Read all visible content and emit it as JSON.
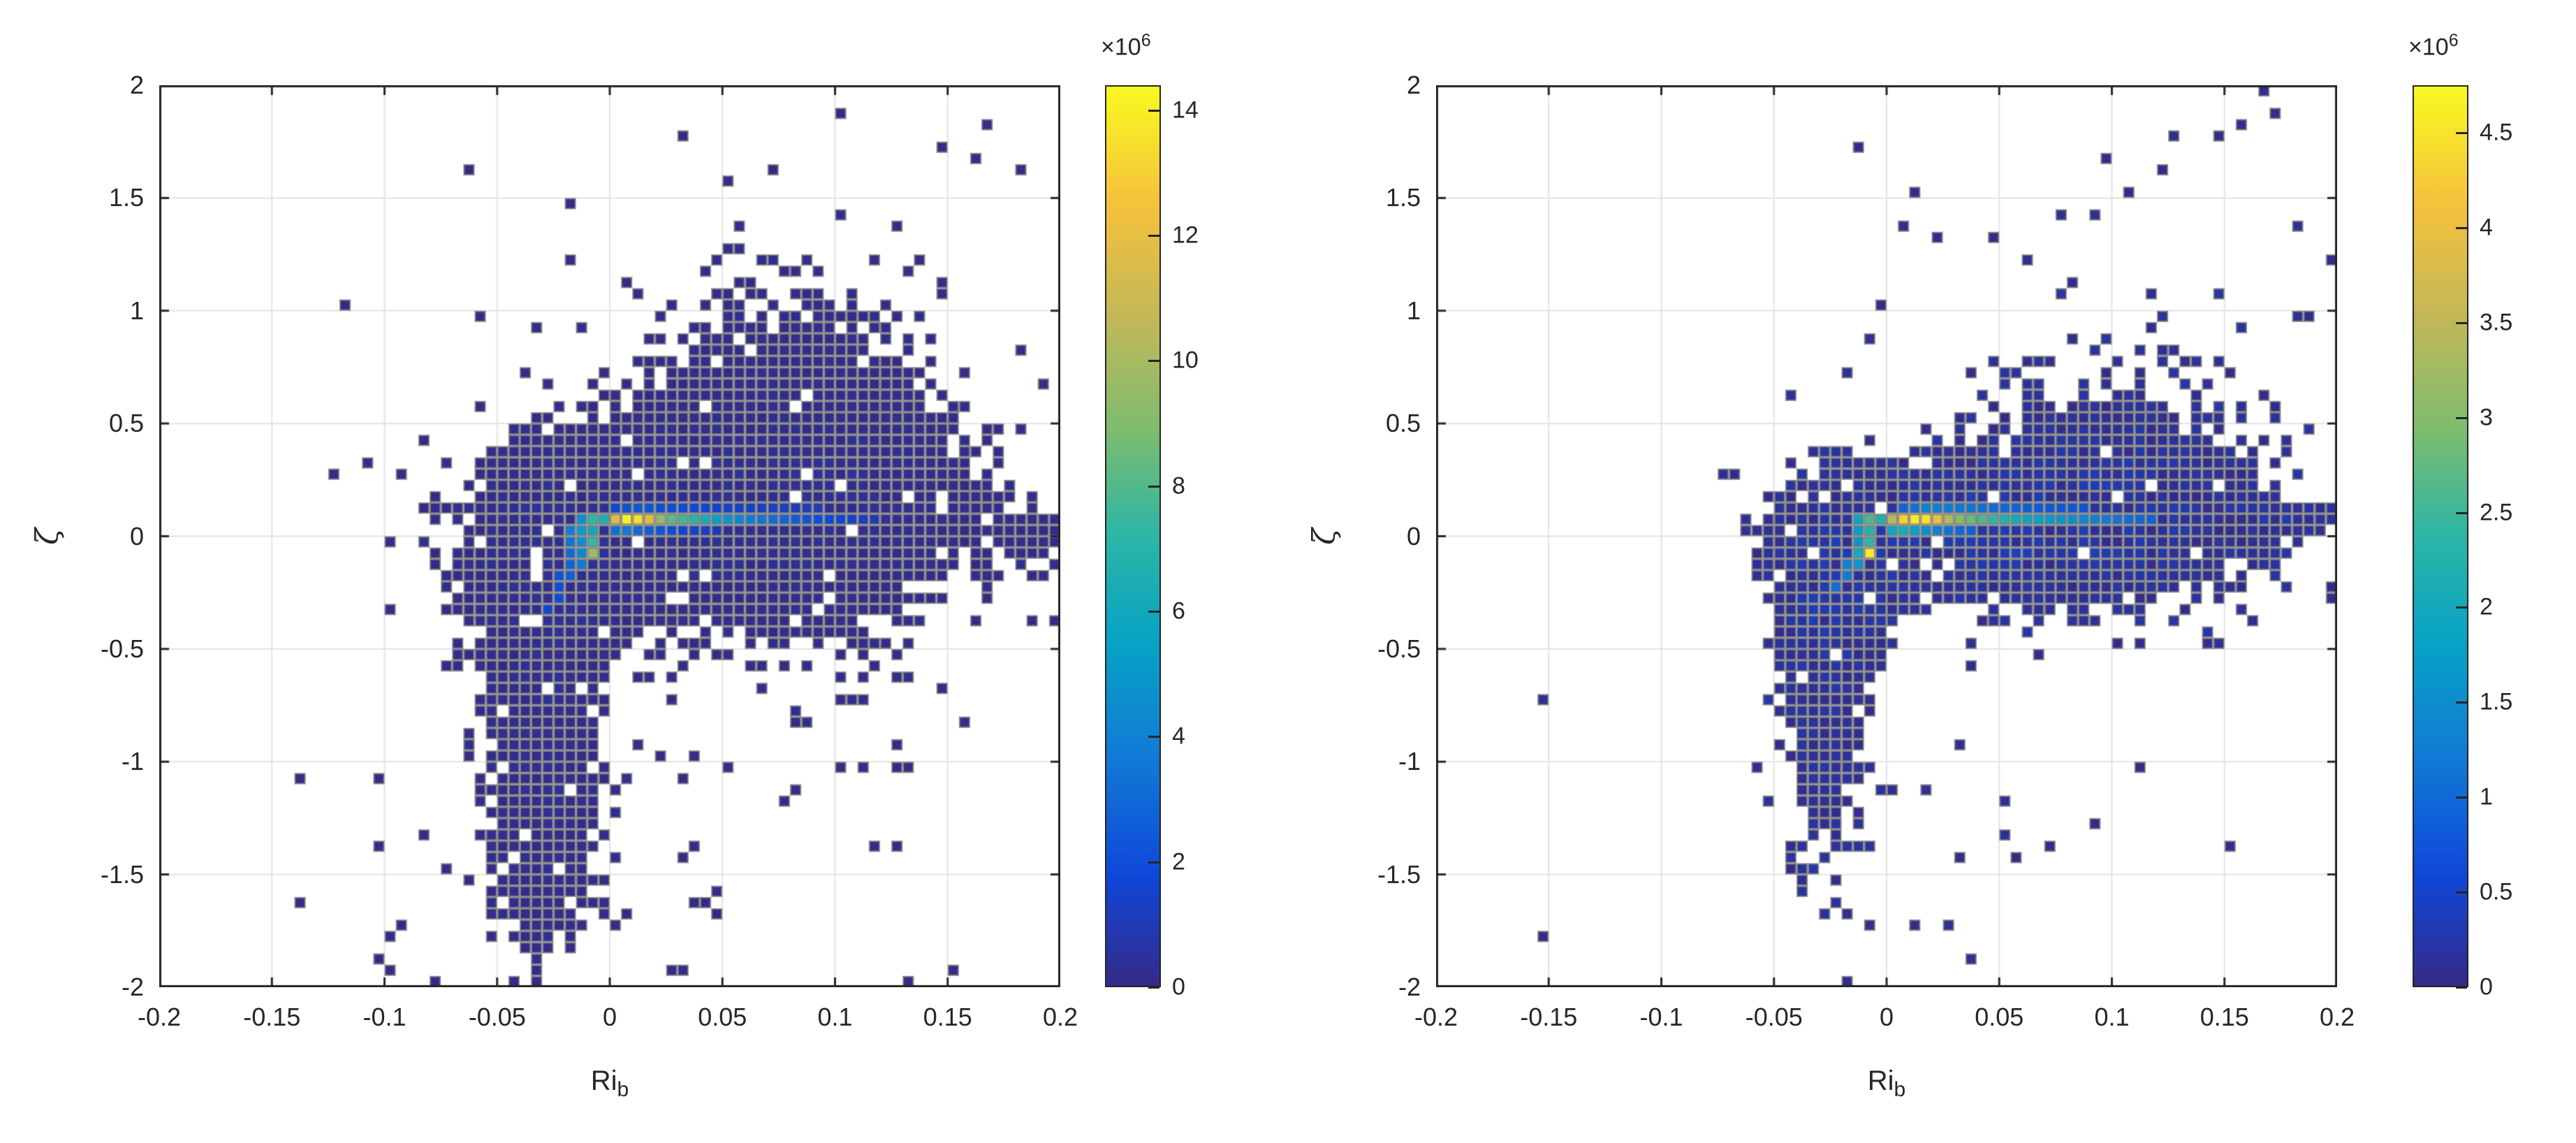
{
  "chart_data": {
    "type": "heatmap",
    "subtype": "binned-scatter-2d-histogram",
    "description": "Two side-by-side MATLAB binscatter density plots of stability parameter zeta versus bulk Richardson number Ri_b. Counts are shown with the parula colormap; both clouds are mostly low-count dark blue bins with a bright high-count streak near the origin at zeta ~ 0.05.",
    "colormap_stops": [
      [
        0.0,
        "#352a87"
      ],
      [
        0.12,
        "#1046d8"
      ],
      [
        0.25,
        "#1179d6"
      ],
      [
        0.38,
        "#07a2c6"
      ],
      [
        0.5,
        "#2cb6a6"
      ],
      [
        0.62,
        "#7fbc6e"
      ],
      [
        0.75,
        "#c6b856"
      ],
      [
        0.87,
        "#f5c13c"
      ],
      [
        1.0,
        "#f9f921"
      ]
    ],
    "grid_color": "#e3e3e3",
    "axis_color": "#262626",
    "bin_fill_low": "#352a87",
    "bin_edge_color": "rgba(128,128,128,0.9)",
    "panels": [
      {
        "id": "left",
        "xlabel_base": "Ri",
        "xlabel_sub": "b",
        "ylabel": "ζ",
        "xlim": [
          -0.2,
          0.2
        ],
        "ylim": [
          -2,
          2
        ],
        "x_ticks": [
          -0.2,
          -0.15,
          -0.1,
          -0.05,
          0,
          0.05,
          0.1,
          0.15,
          0.2
        ],
        "x_tick_labels": [
          "-0.2",
          "-0.15",
          "-0.1",
          "-0.05",
          "0",
          "0.05",
          "0.1",
          "0.15",
          "0.2"
        ],
        "y_ticks": [
          2,
          1.5,
          1,
          0.5,
          0,
          -0.5,
          -1,
          -1.5,
          -2
        ],
        "y_tick_labels": [
          "2",
          "1.5",
          "1",
          "0.5",
          "0",
          "-0.5",
          "-1",
          "-1.5",
          "-2"
        ],
        "bins": {
          "nx": 80,
          "ny": 80,
          "x_width": 0.005,
          "y_width": 0.05
        },
        "colorbar": {
          "exponent_base": "×10",
          "exponent_sup": "6",
          "cmax_1e6": 14.4,
          "ticks": [
            0,
            2,
            4,
            6,
            8,
            10,
            12,
            14
          ],
          "tick_labels": [
            "0",
            "2",
            "4",
            "6",
            "8",
            "10",
            "12",
            "14"
          ]
        },
        "density_model": {
          "seed": 42,
          "solid_threshold": 0.55,
          "sparse_threshold": 0.12,
          "sparse_power": 1.3,
          "sparse_scale": 0.92,
          "outlier_scale": 0.5,
          "hole_probability": 0.045,
          "components": [
            [
              0.055,
              0.08,
              0.065,
              0.28,
              1.0
            ],
            [
              0.085,
              0.5,
              0.05,
              0.33,
              0.55
            ],
            [
              -0.028,
              -0.18,
              0.02,
              0.3,
              1.15
            ],
            [
              -0.03,
              -1.05,
              0.016,
              0.55,
              0.8
            ],
            [
              0.07,
              0.85,
              0.06,
              0.6,
              0.25
            ],
            [
              0.09,
              -0.35,
              0.055,
              0.45,
              0.3
            ],
            [
              -0.045,
              -0.6,
              0.035,
              0.8,
              0.2
            ],
            [
              0.195,
              0.0,
              0.02,
              0.1,
              0.45
            ],
            [
              0.0,
              -1.6,
              0.07,
              0.3,
              0.12
            ]
          ]
        },
        "hot_rows": [
          {
            "y": 0.075,
            "x_start": -0.0025,
            "dx": 0.005,
            "values_1e6": [
              6.5,
              11.5,
              14.2,
              13.5,
              11.8,
              9.5,
              8.2,
              7.6,
              7.0,
              6.2,
              5.4,
              4.8,
              4.2,
              3.8,
              3.4,
              3.1,
              2.8,
              2.5,
              2.2,
              2.0,
              1.8,
              1.6,
              1.4,
              1.2,
              1.0
            ]
          },
          {
            "y": 0.125,
            "x_start": 0.0025,
            "dx": 0.005,
            "values_1e6": [
              1.6,
              2.0,
              2.4,
              2.2,
              2.0,
              1.9,
              1.8,
              1.7,
              1.6,
              1.5,
              1.4,
              1.35,
              1.3,
              1.25,
              1.2,
              1.15,
              1.1,
              1.05,
              1.0
            ]
          },
          {
            "y": 0.025,
            "x_start": 0.0025,
            "dx": 0.005,
            "values_1e6": [
              3.2,
              3.6,
              3.0,
              2.6,
              2.2,
              1.9,
              1.6,
              1.4,
              1.2,
              1.0
            ]
          }
        ],
        "hot_cells_1e6": [
          [
            -0.0075,
            0.075,
            7.2
          ],
          [
            -0.0125,
            0.075,
            4.5
          ],
          [
            -0.0075,
            0.025,
            6.0
          ],
          [
            -0.0125,
            0.025,
            5.2
          ],
          [
            -0.0175,
            0.025,
            3.8
          ],
          [
            -0.0075,
            -0.025,
            7.4
          ],
          [
            -0.0125,
            -0.025,
            4.6
          ],
          [
            -0.0175,
            -0.025,
            3.4
          ],
          [
            -0.0075,
            -0.075,
            9.8
          ],
          [
            -0.0125,
            -0.075,
            4.2
          ],
          [
            -0.0175,
            -0.075,
            3.0
          ],
          [
            -0.0125,
            -0.125,
            3.6
          ],
          [
            -0.0175,
            -0.125,
            2.8
          ],
          [
            -0.0175,
            -0.175,
            2.6
          ],
          [
            -0.0225,
            -0.175,
            2.2
          ],
          [
            -0.0225,
            -0.225,
            2.0
          ],
          [
            -0.0225,
            -0.275,
            1.8
          ],
          [
            -0.0275,
            -0.325,
            1.5
          ]
        ]
      },
      {
        "id": "right",
        "xlabel_base": "Ri",
        "xlabel_sub": "b",
        "ylabel": "ζ",
        "xlim": [
          -0.2,
          0.2
        ],
        "ylim": [
          -2,
          2
        ],
        "x_ticks": [
          -0.2,
          -0.15,
          -0.1,
          -0.05,
          0,
          0.05,
          0.1,
          0.15,
          0.2
        ],
        "x_tick_labels": [
          "-0.2",
          "-0.15",
          "-0.1",
          "-0.05",
          "0",
          "0.05",
          "0.1",
          "0.15",
          "0.2"
        ],
        "y_ticks": [
          2,
          1.5,
          1,
          0.5,
          0,
          -0.5,
          -1,
          -1.5,
          -2
        ],
        "y_tick_labels": [
          "2",
          "1.5",
          "1",
          "0.5",
          "0",
          "-0.5",
          "-1",
          "-1.5",
          "-2"
        ],
        "bins": {
          "nx": 80,
          "ny": 80,
          "x_width": 0.005,
          "y_width": 0.05
        },
        "colorbar": {
          "exponent_base": "×10",
          "exponent_sup": "6",
          "cmax_1e6": 4.75,
          "ticks": [
            0,
            0.5,
            1,
            1.5,
            2,
            2.5,
            3,
            3.5,
            4,
            4.5
          ],
          "tick_labels": [
            "0",
            "0.5",
            "1",
            "1.5",
            "2",
            "2.5",
            "3",
            "3.5",
            "4",
            "4.5"
          ]
        },
        "density_model": {
          "seed": 1337,
          "solid_threshold": 0.55,
          "sparse_threshold": 0.12,
          "sparse_power": 1.3,
          "sparse_scale": 0.92,
          "outlier_scale": 0.5,
          "hole_probability": 0.05,
          "components": [
            [
              0.05,
              0.0,
              0.055,
              0.2,
              1.0
            ],
            [
              0.09,
              0.3,
              0.05,
              0.25,
              0.55
            ],
            [
              -0.025,
              -0.22,
              0.018,
              0.28,
              1.15
            ],
            [
              -0.028,
              -0.9,
              0.014,
              0.42,
              0.65
            ],
            [
              0.1,
              0.75,
              0.07,
              0.55,
              0.2
            ],
            [
              0.12,
              -0.1,
              0.05,
              0.35,
              0.25
            ],
            [
              0.19,
              0.06,
              0.03,
              0.05,
              0.9
            ],
            [
              0.0,
              -1.5,
              0.08,
              0.35,
              0.08
            ]
          ]
        },
        "hot_rows": [
          {
            "y": 0.075,
            "x_start": -0.0025,
            "dx": 0.005,
            "values_1e6": [
              2.2,
              3.4,
              4.3,
              4.6,
              4.5,
              4.0,
              3.4,
              3.0,
              2.8,
              2.6,
              2.4,
              2.2,
              2.0,
              1.9,
              1.8,
              1.7,
              1.6,
              1.5,
              1.4,
              1.3,
              1.2,
              1.1,
              1.0,
              0.95,
              0.9
            ]
          },
          {
            "y": 0.125,
            "x_start": 0.0075,
            "dx": 0.005,
            "values_1e6": [
              0.9,
              1.1,
              1.3,
              1.25,
              1.2,
              1.15,
              1.1,
              1.05,
              1.0,
              0.95,
              0.9,
              0.85,
              0.8,
              0.78,
              0.76,
              0.74,
              0.72
            ]
          },
          {
            "y": 0.025,
            "x_start": 0.0025,
            "dx": 0.005,
            "values_1e6": [
              1.9,
              2.1,
              1.8,
              1.5,
              1.3,
              1.1,
              0.95,
              0.85
            ]
          }
        ],
        "hot_cells_1e6": [
          [
            -0.0075,
            0.075,
            2.6
          ],
          [
            -0.0125,
            0.075,
            1.9
          ],
          [
            -0.0075,
            0.025,
            2.3
          ],
          [
            -0.0125,
            0.025,
            1.7
          ],
          [
            -0.0075,
            -0.025,
            2.4
          ],
          [
            -0.0125,
            -0.025,
            1.6
          ],
          [
            -0.0075,
            -0.075,
            4.6
          ],
          [
            -0.0125,
            -0.075,
            2.0
          ],
          [
            -0.0125,
            -0.125,
            1.6
          ],
          [
            -0.0175,
            -0.125,
            1.3
          ],
          [
            -0.0175,
            -0.175,
            1.2
          ],
          [
            -0.0225,
            -0.225,
            1.0
          ]
        ]
      }
    ]
  }
}
